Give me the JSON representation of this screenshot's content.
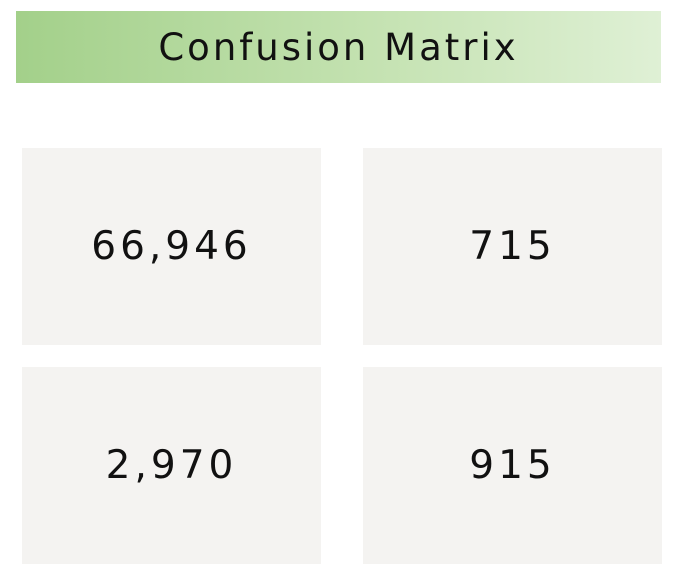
{
  "title": "Confusion Matrix",
  "colors": {
    "title_gradient_start": "#a3d08a",
    "title_gradient_end": "#dff0d5",
    "cell_background": "#f4f3f1",
    "text": "#111111"
  },
  "chart_data": {
    "type": "table",
    "title": "Confusion Matrix",
    "rows": [
      [
        "66,946",
        "715"
      ],
      [
        "2,970",
        "915"
      ]
    ],
    "values": [
      [
        66946,
        715
      ],
      [
        2970,
        915
      ]
    ],
    "grid": false
  }
}
